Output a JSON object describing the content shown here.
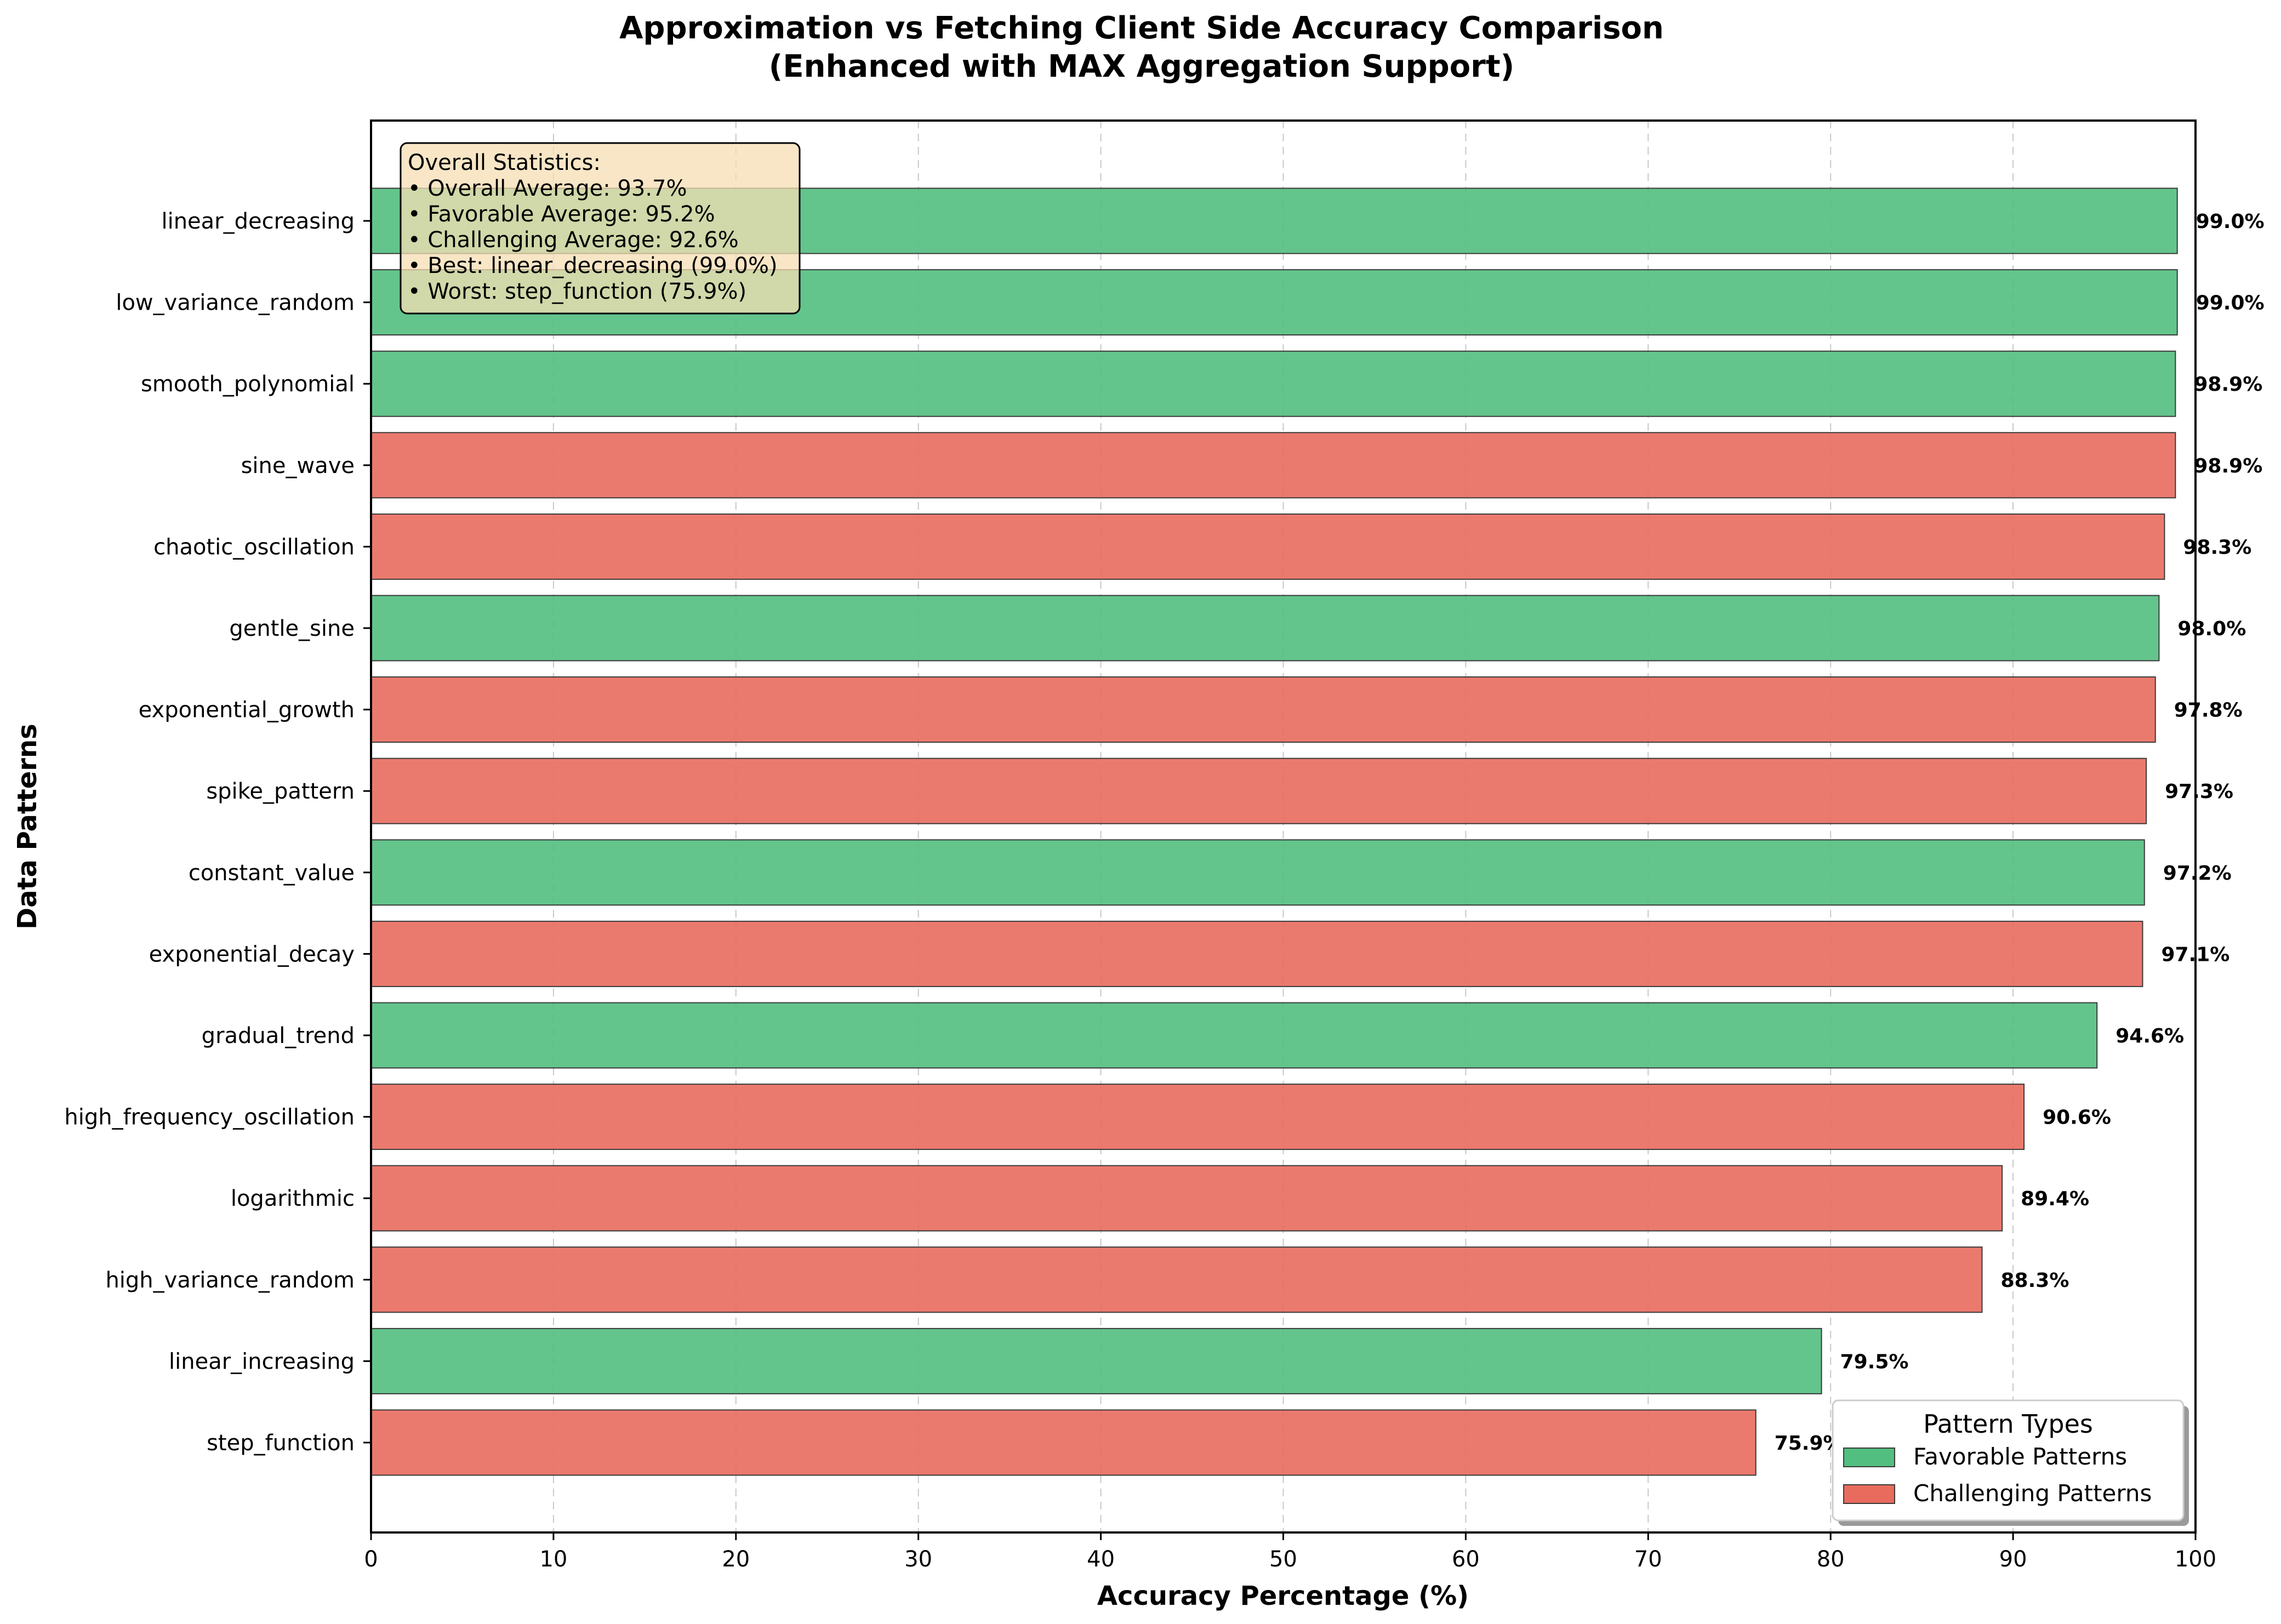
{
  "chart_data": {
    "type": "bar",
    "orientation": "horizontal",
    "title": "Approximation vs Fetching Client Side Accuracy Comparison",
    "subtitle": "(Enhanced with MAX Aggregation Support)",
    "xlabel": "Accuracy Percentage (%)",
    "ylabel": "Data Patterns",
    "xlim": [
      0,
      100
    ],
    "xticks": [
      0,
      10,
      20,
      30,
      40,
      50,
      60,
      70,
      80,
      90,
      100
    ],
    "grid": "x-dashed",
    "colors": {
      "favorable": "#52bf80",
      "challenging": "#e96b5e"
    },
    "categories": [
      "linear_decreasing",
      "low_variance_random",
      "smooth_polynomial",
      "sine_wave",
      "chaotic_oscillation",
      "gentle_sine",
      "exponential_growth",
      "spike_pattern",
      "constant_value",
      "exponential_decay",
      "gradual_trend",
      "high_frequency_oscillation",
      "logarithmic",
      "high_variance_random",
      "linear_increasing",
      "step_function"
    ],
    "values": [
      99.0,
      99.0,
      98.9,
      98.9,
      98.3,
      98.0,
      97.8,
      97.3,
      97.2,
      97.1,
      94.6,
      90.6,
      89.4,
      88.3,
      79.5,
      75.9
    ],
    "value_labels": [
      "99.0%",
      "99.0%",
      "98.9%",
      "98.9%",
      "98.3%",
      "98.0%",
      "97.8%",
      "97.3%",
      "97.2%",
      "97.1%",
      "94.6%",
      "90.6%",
      "89.4%",
      "88.3%",
      "79.5%",
      "75.9%"
    ],
    "group": [
      "favorable",
      "favorable",
      "favorable",
      "challenging",
      "challenging",
      "favorable",
      "challenging",
      "challenging",
      "favorable",
      "challenging",
      "favorable",
      "challenging",
      "challenging",
      "challenging",
      "favorable",
      "challenging"
    ],
    "legend": {
      "title": "Pattern Types",
      "position": "lower-right",
      "entries": [
        {
          "label": "Favorable Patterns",
          "group": "favorable"
        },
        {
          "label": "Challenging Patterns",
          "group": "challenging"
        }
      ]
    },
    "annotation": {
      "position": "top-left",
      "lines": [
        "Overall Statistics:",
        "• Overall Average: 93.7%",
        "• Favorable Average: 95.2%",
        "• Challenging Average: 92.6%",
        "• Best: linear_decreasing (99.0%)",
        "• Worst: step_function (75.9%)"
      ]
    }
  }
}
